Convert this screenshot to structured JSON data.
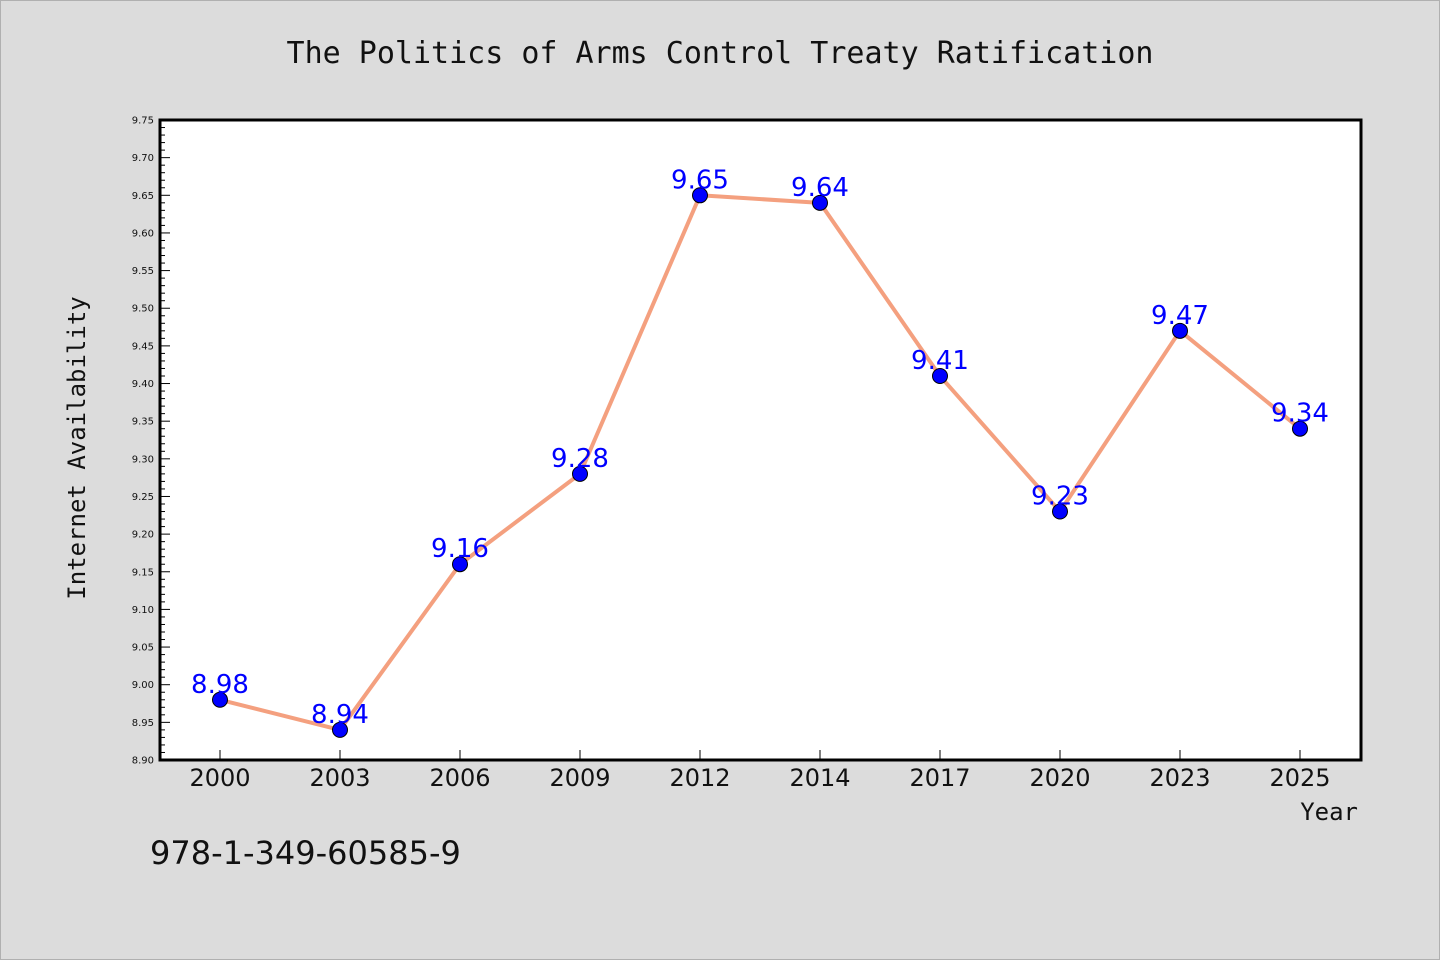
{
  "chart_data": {
    "type": "line",
    "title": "The Politics of Arms Control Treaty Ratification",
    "xlabel": "Year",
    "ylabel": "Internet Availability",
    "categories": [
      "2000",
      "2003",
      "2006",
      "2009",
      "2012",
      "2014",
      "2017",
      "2020",
      "2023",
      "2025"
    ],
    "series": [
      {
        "values": [
          8.98,
          8.94,
          9.16,
          9.28,
          9.65,
          9.64,
          9.41,
          9.23,
          9.47,
          9.34
        ]
      }
    ],
    "data_labels": [
      "8.98",
      "8.94",
      "9.16",
      "9.28",
      "9.65",
      "9.64",
      "9.41",
      "9.23",
      "9.47",
      "9.34"
    ],
    "ylim": [
      8.9,
      9.75
    ],
    "yticks": [
      "8.90",
      "8.95",
      "9.00",
      "9.05",
      "9.10",
      "9.15",
      "9.20",
      "9.25",
      "9.30",
      "9.35",
      "9.40",
      "9.45",
      "9.50",
      "9.55",
      "9.60",
      "9.65",
      "9.70",
      "9.75"
    ],
    "grid": false,
    "legend": "none",
    "colors": {
      "line": "#f4a07f",
      "marker": "#0000ff",
      "marker_edge": "#000000",
      "label": "#0000ff",
      "plot_background": "#ffffff",
      "figure_background": "#dcdcdc"
    }
  },
  "annotation": "978-1-349-60585-9"
}
